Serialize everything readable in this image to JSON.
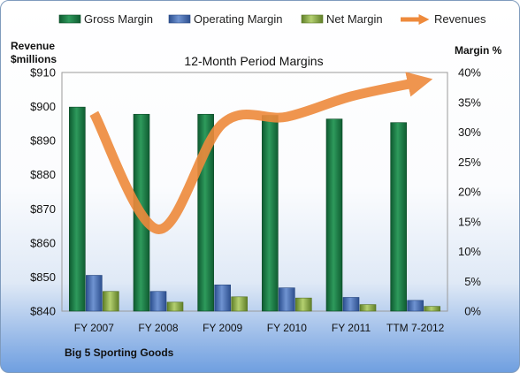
{
  "chart_data": {
    "type": "bar",
    "title": "12-Month Period Margins",
    "footer": "Big 5 Sporting Goods",
    "left_axis": {
      "title_line1": "Revenue",
      "title_line2": "$millions",
      "range": [
        840,
        910
      ],
      "ticks": [
        "$840",
        "$850",
        "$860",
        "$870",
        "$880",
        "$890",
        "$900",
        "$910"
      ],
      "tick_values": [
        840,
        850,
        860,
        870,
        880,
        890,
        900,
        910
      ]
    },
    "right_axis": {
      "title": "Margin %",
      "range": [
        0,
        40
      ],
      "ticks": [
        "0%",
        "5%",
        "10%",
        "15%",
        "20%",
        "25%",
        "30%",
        "35%",
        "40%"
      ],
      "tick_values": [
        0,
        5,
        10,
        15,
        20,
        25,
        30,
        35,
        40
      ]
    },
    "categories": [
      "FY 2007",
      "FY 2008",
      "FY 2009",
      "FY 2010",
      "FY 2011",
      "TTM 7-2012"
    ],
    "series": [
      {
        "name": "Gross Margin",
        "axis": "right",
        "kind": "bar",
        "color": "#1f7a45",
        "values": [
          34.2,
          33.0,
          33.0,
          32.8,
          32.2,
          31.6
        ]
      },
      {
        "name": "Operating Margin",
        "axis": "right",
        "kind": "bar",
        "color": "#4a6fb0",
        "values": [
          6.0,
          3.3,
          4.4,
          3.9,
          2.3,
          1.8
        ]
      },
      {
        "name": "Net Margin",
        "axis": "right",
        "kind": "bar",
        "color": "#8fb04a",
        "values": [
          3.3,
          1.5,
          2.4,
          2.2,
          1.1,
          0.8
        ]
      },
      {
        "name": "Revenues",
        "axis": "left",
        "kind": "line",
        "color": "#ee8a3c",
        "values": [
          898,
          864,
          895,
          897,
          903,
          907
        ]
      }
    ],
    "legend_placement": "top",
    "grid": false
  }
}
